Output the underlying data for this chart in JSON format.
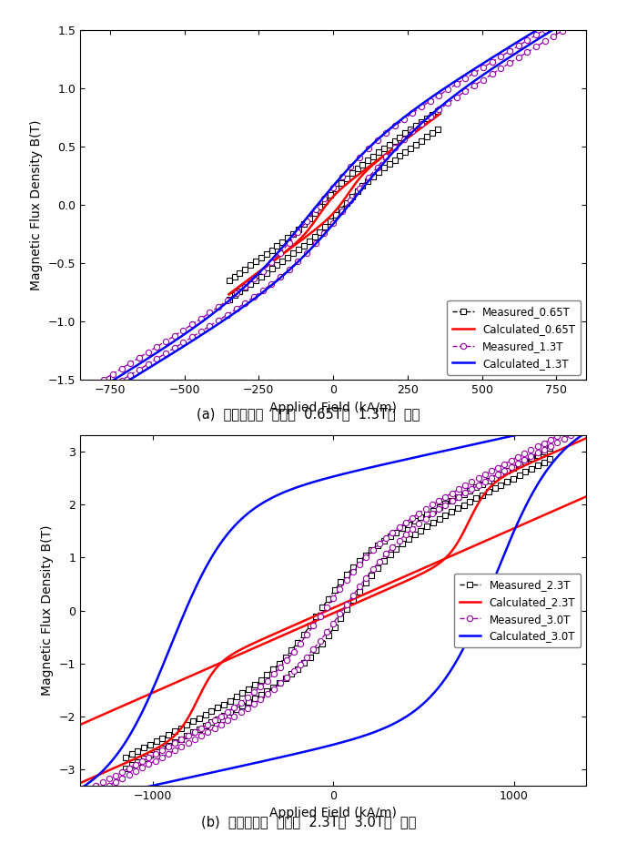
{
  "fig_width": 6.78,
  "fig_height": 9.38,
  "background_color": "#ffffff",
  "subplot_a": {
    "xlabel": "Applied Field (kA/m)",
    "ylabel": "Magnetic Flux Density B(T)",
    "xlim": [
      -850,
      850
    ],
    "ylim": [
      -1.5,
      1.5
    ],
    "xticks": [
      -750,
      -500,
      -250,
      0,
      250,
      500,
      750
    ],
    "yticks": [
      -1.5,
      -1.0,
      -0.5,
      0.0,
      0.5,
      1.0,
      1.5
    ],
    "caption": "(a)  자속밀도의  크기가  0.65T와  1.3T인  경우",
    "legend_entries": [
      "Measured_0.65T",
      "Calculated_0.65T",
      "Measured_1.3T",
      "Calculated_1.3T"
    ]
  },
  "subplot_b": {
    "xlabel": "Applied Field (kA/m)",
    "ylabel": "Magnetic Flux Density B(T)",
    "xlim": [
      -1400,
      1400
    ],
    "ylim": [
      -3.3,
      3.3
    ],
    "xticks": [
      -1000,
      0,
      1000
    ],
    "yticks": [
      -3,
      -2,
      -1,
      0,
      1,
      2,
      3
    ],
    "caption": "(b)  자속밀도의  크기가  2.3T와  3.0T인  경우",
    "legend_entries": [
      "Measured_2.3T",
      "Calculated_2.3T",
      "Measured_3.0T",
      "Calculated_3.0T"
    ]
  },
  "colors": {
    "measured_065": "#000000",
    "calculated_065": "#ff0000",
    "measured_13": "#9900aa",
    "calculated_13": "#0000ff",
    "measured_23": "#000000",
    "calculated_23": "#ff0000",
    "measured_30": "#9900aa",
    "calculated_30": "#0000ff"
  }
}
